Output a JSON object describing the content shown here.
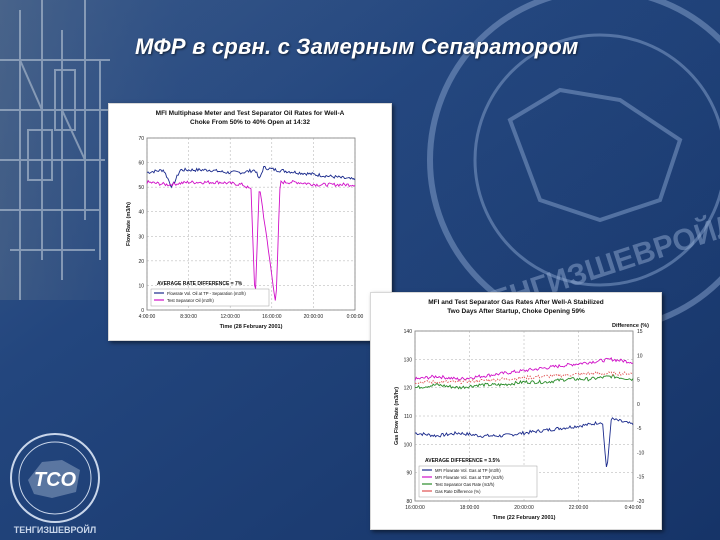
{
  "slide": {
    "title": "МФР в срвн. с Замерным Сепаратором",
    "logo_text": "ТСО",
    "logo_subtext": "ТЕНГИЗШЕВРОЙЛ",
    "watermark_text": "ТЕНГИЗШЕВРОЙЛ",
    "colors": {
      "background": "#1d3f78",
      "title": "#ffffff"
    }
  },
  "chart_data": [
    {
      "type": "line",
      "title": "MFI Multiphase Meter and Test Separator Oil Rates for Well-A",
      "subtitle": "Choke From 50% to 40% Open at 14:32",
      "xlabel": "Time (28 February 2001)",
      "ylabel": "Flow Rate (m3/h)",
      "ylim": [
        0,
        70
      ],
      "yticks": [
        "0",
        "10",
        "20",
        "30",
        "40",
        "50",
        "60",
        "70"
      ],
      "xticks": [
        "4:00:00",
        "8:30:00",
        "12:00:00",
        "16:00:00",
        "20:00:00",
        "0:00:00"
      ],
      "annotation": "AVERAGE RATE DIFFERENCE = 7%",
      "grid": true,
      "legend_position": "lower-left",
      "series": [
        {
          "name": "Flowrate Vol. Oil at TP - Separation (m3/h)",
          "color": "#1a2a8c",
          "points": [
            [
              0,
              56
            ],
            [
              0.08,
              57
            ],
            [
              0.12,
              50
            ],
            [
              0.16,
              57
            ],
            [
              0.3,
              57
            ],
            [
              0.38,
              56
            ],
            [
              0.46,
              56
            ],
            [
              0.52,
              57
            ],
            [
              0.54,
              53
            ],
            [
              0.56,
              58
            ],
            [
              0.62,
              57
            ],
            [
              0.72,
              56
            ],
            [
              0.82,
              55
            ],
            [
              0.92,
              54
            ],
            [
              1,
              53
            ]
          ]
        },
        {
          "name": "Test Separator Oil (m3/h)",
          "color": "#d010c8",
          "points": [
            [
              0,
              52
            ],
            [
              0.1,
              51
            ],
            [
              0.2,
              52
            ],
            [
              0.35,
              52
            ],
            [
              0.46,
              51
            ],
            [
              0.5,
              49
            ],
            [
              0.52,
              3
            ],
            [
              0.54,
              51
            ],
            [
              0.62,
              2
            ],
            [
              0.64,
              52
            ],
            [
              0.72,
              52
            ],
            [
              0.82,
              51
            ],
            [
              0.92,
              51
            ],
            [
              1,
              51
            ]
          ]
        }
      ]
    },
    {
      "type": "line",
      "title": "MFI and Test Separator Gas Rates After Well-A Stabilized",
      "subtitle": "Two Days After Startup, Choke Opening 59%",
      "xlabel": "Time (22 February 2001)",
      "ylabel": "Gas Flow Rate (m3/hr)",
      "y2label": "Difference (%)",
      "ylim": [
        80,
        140
      ],
      "yticks": [
        "80",
        "90",
        "100",
        "110",
        "120",
        "130",
        "140"
      ],
      "y2ticks": [
        "15",
        "10",
        "5",
        "0",
        "-5",
        "-10",
        "-15",
        "-20"
      ],
      "xticks": [
        "16:00:00",
        "18:00:00",
        "20:00:00",
        "22:00:00",
        "0:40:00"
      ],
      "annotation": "AVERAGE DIFFERENCE = 3.5%",
      "grid": true,
      "legend_position": "lower-left",
      "series": [
        {
          "name": "MFI Flowrate Vol. Gas at TP (m3/h)",
          "color": "#1a2a8c",
          "points": [
            [
              0,
              104
            ],
            [
              0.1,
              103
            ],
            [
              0.2,
              104
            ],
            [
              0.3,
              103
            ],
            [
              0.4,
              103
            ],
            [
              0.5,
              104
            ],
            [
              0.6,
              105
            ],
            [
              0.7,
              106
            ],
            [
              0.8,
              107
            ],
            [
              0.86,
              108
            ],
            [
              0.88,
              90
            ],
            [
              0.9,
              109
            ],
            [
              1,
              107
            ]
          ]
        },
        {
          "name": "MFI Flowrate Vol. Gas at TSP (m3/h)",
          "color": "#d010c8",
          "points": [
            [
              0,
              123
            ],
            [
              0.1,
              124
            ],
            [
              0.2,
              123
            ],
            [
              0.3,
              124
            ],
            [
              0.4,
              125
            ],
            [
              0.5,
              126
            ],
            [
              0.6,
              127
            ],
            [
              0.7,
              128
            ],
            [
              0.8,
              129
            ],
            [
              0.9,
              130
            ],
            [
              1,
              129
            ]
          ]
        },
        {
          "name": "Test Separator Gas Rate (m3/h)",
          "color": "#2a8c2a",
          "points": [
            [
              0,
              120
            ],
            [
              0.1,
              121
            ],
            [
              0.2,
              120
            ],
            [
              0.3,
              121
            ],
            [
              0.4,
              121
            ],
            [
              0.5,
              122
            ],
            [
              0.6,
              122
            ],
            [
              0.7,
              123
            ],
            [
              0.8,
              123
            ],
            [
              0.9,
              124
            ],
            [
              1,
              123
            ]
          ]
        },
        {
          "name": "Gas Rate Difference (%)",
          "color": "#e05050",
          "points": [
            [
              0,
              122
            ],
            [
              0.2,
              122
            ],
            [
              0.4,
              123
            ],
            [
              0.6,
              124
            ],
            [
              0.8,
              125
            ],
            [
              1,
              125
            ]
          ]
        }
      ]
    }
  ]
}
